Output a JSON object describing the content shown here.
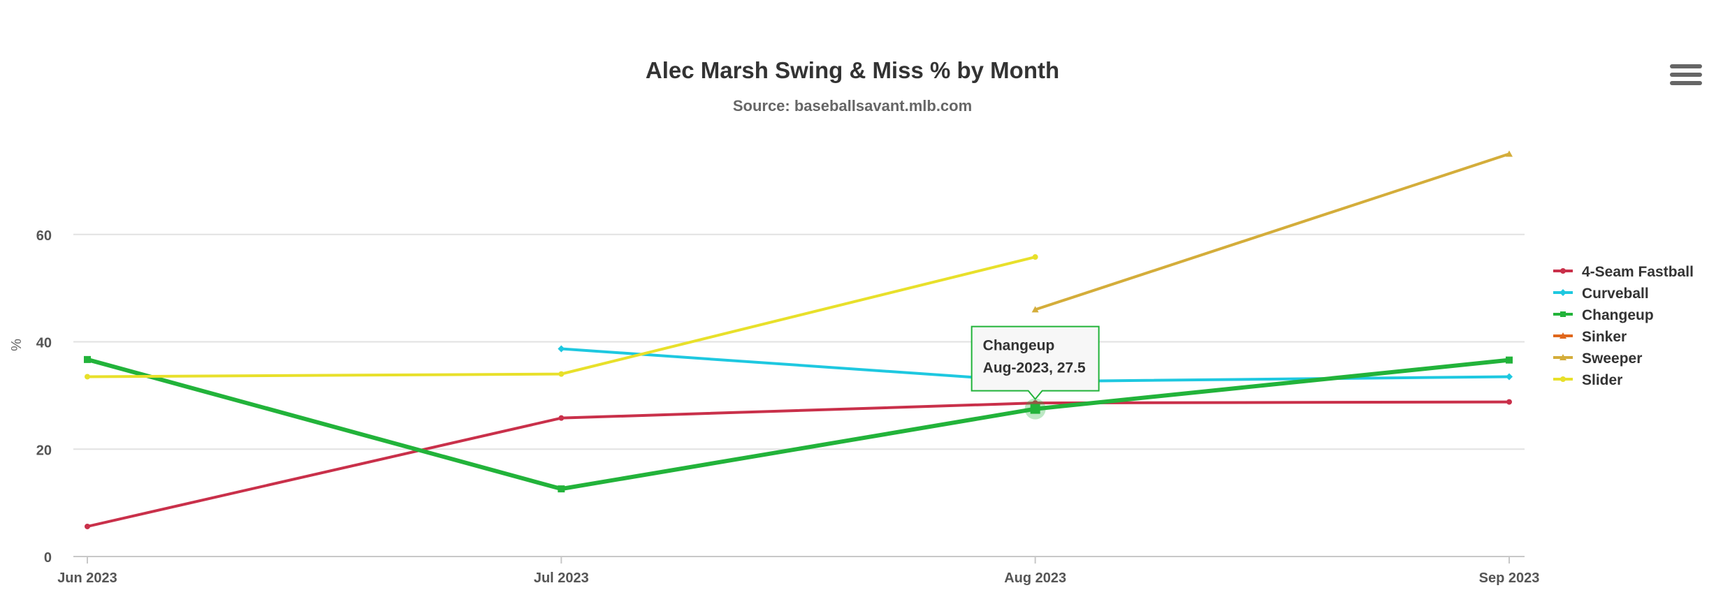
{
  "chart_data": {
    "type": "line",
    "title": "Alec Marsh Swing & Miss % by Month",
    "subtitle": "Source: baseballsavant.mlb.com",
    "xlabel": "",
    "ylabel": "%",
    "categories": [
      "Jun 2023",
      "Jul 2023",
      "Aug 2023",
      "Sep 2023"
    ],
    "yticks": [
      "0",
      "20",
      "40",
      "60"
    ],
    "ylim": [
      0,
      80
    ],
    "grid": true,
    "legend_position": "right",
    "series": [
      {
        "name": "4-Seam Fastball",
        "color": "#c9304a",
        "marker": "circle",
        "values": [
          5.6,
          25.8,
          28.6,
          28.8
        ]
      },
      {
        "name": "Curveball",
        "color": "#1ec8e0",
        "marker": "diamond",
        "values": [
          null,
          38.7,
          32.6,
          33.5
        ]
      },
      {
        "name": "Changeup",
        "color": "#22b33a",
        "marker": "square",
        "values": [
          36.7,
          12.6,
          27.5,
          36.6
        ]
      },
      {
        "name": "Sinker",
        "color": "#e0671c",
        "marker": "triangle",
        "values": [
          null,
          null,
          null,
          null
        ]
      },
      {
        "name": "Sweeper",
        "color": "#d4ad3a",
        "marker": "triangle",
        "values": [
          null,
          null,
          46.0,
          75.0
        ]
      },
      {
        "name": "Slider",
        "color": "#e8e02a",
        "marker": "circle",
        "values": [
          33.5,
          34.0,
          55.8,
          null
        ]
      }
    ],
    "tooltip": {
      "series": "Changeup",
      "line1": "Changeup",
      "line2": "Aug-2023, 27.5"
    }
  }
}
